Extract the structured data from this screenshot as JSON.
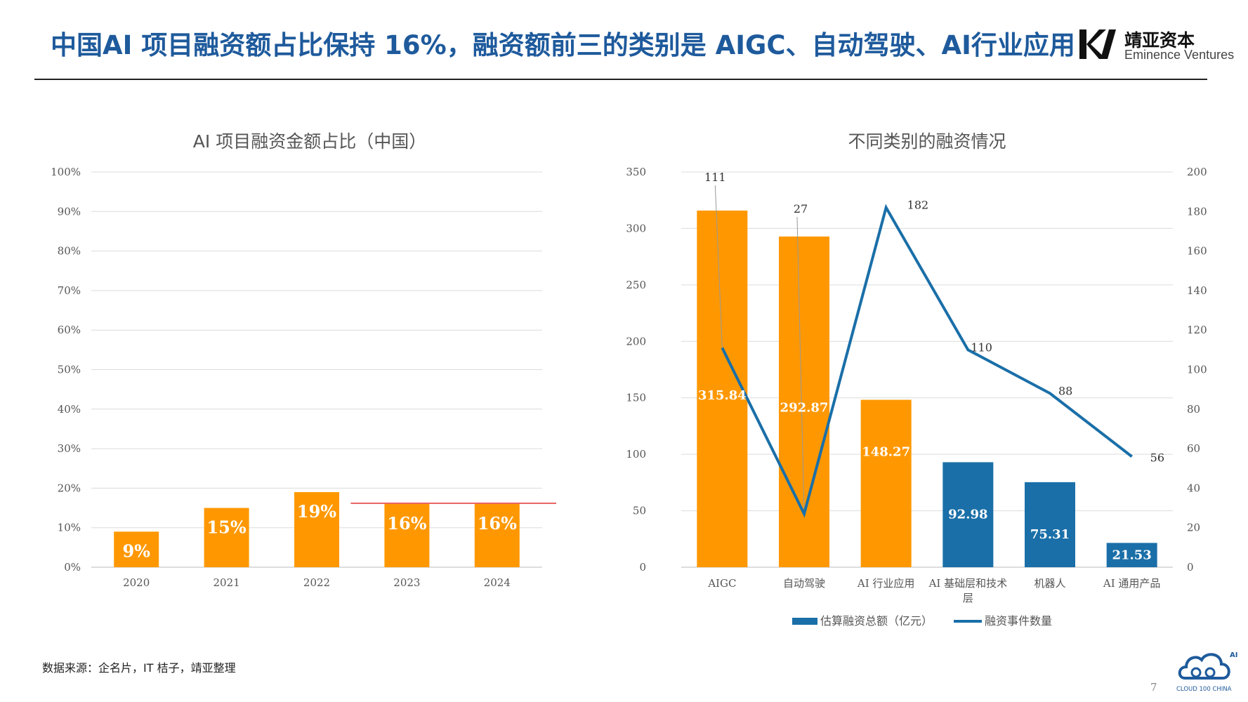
{
  "header": {
    "title": "中国AI 项目融资额占比保持 16%，融资额前三的类别是 AIGC、自动驾驶、AI行业应用",
    "logo_name": "靖亚资本",
    "logo_sub": "Eminence Ventures"
  },
  "footer": {
    "source": "数据来源：企名片，IT 桔子，靖亚整理",
    "page_number": "7",
    "brand_text": "CLOUD 100 CHINA",
    "brand_badge": "AI"
  },
  "colors": {
    "title": "#1e5a9c",
    "orange": "#ff9800",
    "blue": "#1a6fa8",
    "line": "#1a6fa8",
    "redline": "#e03030"
  },
  "chart_data": [
    {
      "type": "bar",
      "title": "AI 项目融资金额占比（中国）",
      "categories": [
        "2020",
        "2021",
        "2022",
        "2023",
        "2024"
      ],
      "values": [
        9,
        15,
        19,
        16,
        16
      ],
      "value_labels": [
        "9%",
        "15%",
        "19%",
        "16%",
        "16%"
      ],
      "ylim": [
        0,
        100
      ],
      "yticks": [
        "0%",
        "10%",
        "20%",
        "30%",
        "40%",
        "50%",
        "60%",
        "70%",
        "80%",
        "90%",
        "100%"
      ],
      "reference_line": {
        "value": 16,
        "from_category": "2023",
        "color": "#e03030"
      },
      "grid": true
    },
    {
      "type": "bar",
      "title": "不同类别的融资情况",
      "categories": [
        "AIGC",
        "自动驾驶",
        "AI 行业应用",
        "AI 基础层和技术层",
        "机器人",
        "AI 通用产品"
      ],
      "category_lines": [
        [
          "AIGC"
        ],
        [
          "自动驾驶"
        ],
        [
          "AI 行业应用"
        ],
        [
          "AI 基础层和技术",
          "层"
        ],
        [
          "机器人"
        ],
        [
          "AI 通用产品"
        ]
      ],
      "series": [
        {
          "name": "估算融资总额（亿元）",
          "type": "bar",
          "axis": "left",
          "values": [
            315.84,
            292.87,
            148.27,
            92.98,
            75.31,
            21.53
          ],
          "labels": [
            "315.84",
            "292.87",
            "148.27",
            "92.98",
            "75.31",
            "21.53"
          ],
          "colors": [
            "#ff9800",
            "#ff9800",
            "#ff9800",
            "#1a6fa8",
            "#1a6fa8",
            "#1a6fa8"
          ]
        },
        {
          "name": "融资事件数量",
          "type": "line",
          "axis": "right",
          "values": [
            111,
            27,
            182,
            110,
            88,
            56
          ],
          "labels": [
            "111",
            "27",
            "182",
            "110",
            "88",
            "56"
          ],
          "color": "#1a6fa8"
        }
      ],
      "ylim_left": [
        0,
        350
      ],
      "yticks_left": [
        "0",
        "50",
        "100",
        "150",
        "200",
        "250",
        "300",
        "350"
      ],
      "ylim_right": [
        0,
        200
      ],
      "yticks_right": [
        "0",
        "20",
        "40",
        "60",
        "80",
        "100",
        "120",
        "140",
        "160",
        "180",
        "200"
      ],
      "legend_position": "bottom",
      "grid": true
    }
  ]
}
